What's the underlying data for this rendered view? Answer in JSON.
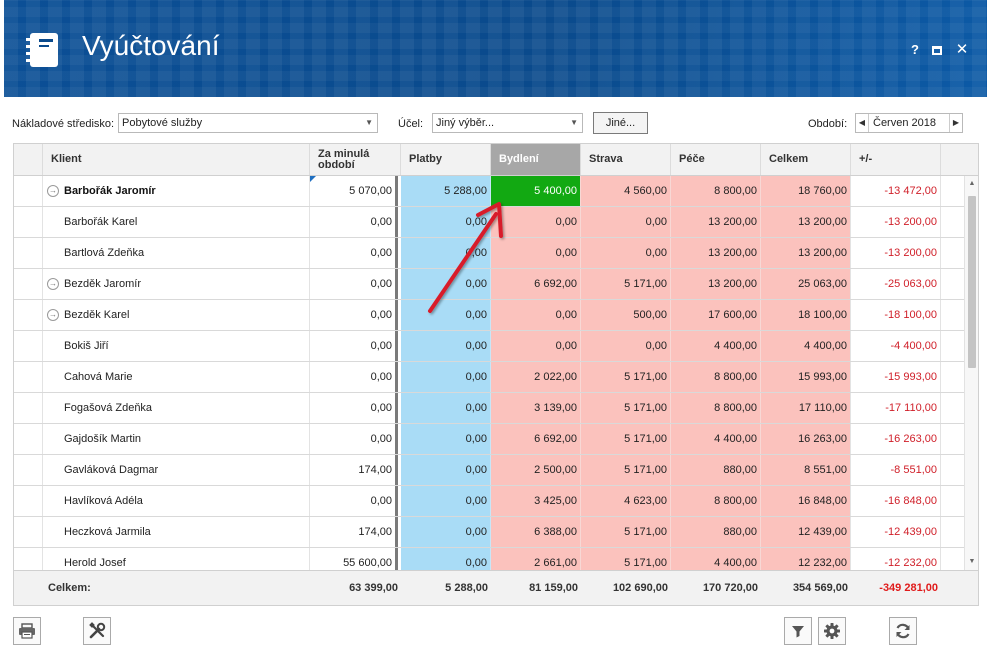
{
  "window": {
    "title": "Vyúčtování",
    "help_label": "?",
    "close_label": "✕",
    "icons": {
      "app": "notebook-icon",
      "maximize": "maximize-icon",
      "close": "close-icon"
    }
  },
  "filters": {
    "cost_center_label": "Nákladové středisko:",
    "cost_center_value": "Pobytové služby",
    "purpose_label": "Účel:",
    "purpose_value": "Jiný výběr...",
    "other_button": "Jiné...",
    "period_label": "Období:",
    "period_value": "Červen 2018"
  },
  "table": {
    "columns": [
      "Klient",
      "Za minulá\nobdobí",
      "Platby",
      "Bydlení",
      "Strava",
      "Péče",
      "Celkem",
      "+/-"
    ],
    "sorted_column": "Bydlení",
    "rows": [
      {
        "name": "Barbořák Jaromír",
        "prev": "5 070,00",
        "pay": "5 288,00",
        "byd": "5 400,00",
        "str": "4 560,00",
        "pec": "8 800,00",
        "cel": "18 760,00",
        "diff": "-13 472,00",
        "expandable": true,
        "bold": true,
        "active": true
      },
      {
        "name": "Barbořák Karel",
        "prev": "0,00",
        "pay": "0,00",
        "byd": "0,00",
        "str": "0,00",
        "pec": "13 200,00",
        "cel": "13 200,00",
        "diff": "-13 200,00",
        "expandable": false
      },
      {
        "name": "Bartlová Zdeňka",
        "prev": "0,00",
        "pay": "0,00",
        "byd": "0,00",
        "str": "0,00",
        "pec": "13 200,00",
        "cel": "13 200,00",
        "diff": "-13 200,00",
        "expandable": false
      },
      {
        "name": "Bezděk Jaromír",
        "prev": "0,00",
        "pay": "0,00",
        "byd": "6 692,00",
        "str": "5 171,00",
        "pec": "13 200,00",
        "cel": "25 063,00",
        "diff": "-25 063,00",
        "expandable": true
      },
      {
        "name": "Bezděk Karel",
        "prev": "0,00",
        "pay": "0,00",
        "byd": "0,00",
        "str": "500,00",
        "pec": "17 600,00",
        "cel": "18 100,00",
        "diff": "-18 100,00",
        "expandable": true
      },
      {
        "name": "Bokiš Jiří",
        "prev": "0,00",
        "pay": "0,00",
        "byd": "0,00",
        "str": "0,00",
        "pec": "4 400,00",
        "cel": "4 400,00",
        "diff": "-4 400,00",
        "expandable": false
      },
      {
        "name": "Cahová Marie",
        "prev": "0,00",
        "pay": "0,00",
        "byd": "2 022,00",
        "str": "5 171,00",
        "pec": "8 800,00",
        "cel": "15 993,00",
        "diff": "-15 993,00",
        "expandable": false
      },
      {
        "name": "Fogašová Zdeňka",
        "prev": "0,00",
        "pay": "0,00",
        "byd": "3 139,00",
        "str": "5 171,00",
        "pec": "8 800,00",
        "cel": "17 110,00",
        "diff": "-17 110,00",
        "expandable": false
      },
      {
        "name": "Gajdošík Martin",
        "prev": "0,00",
        "pay": "0,00",
        "byd": "6 692,00",
        "str": "5 171,00",
        "pec": "4 400,00",
        "cel": "16 263,00",
        "diff": "-16 263,00",
        "expandable": false
      },
      {
        "name": "Gavláková Dagmar",
        "prev": "174,00",
        "pay": "0,00",
        "byd": "2 500,00",
        "str": "5 171,00",
        "pec": "880,00",
        "cel": "8 551,00",
        "diff": "-8 551,00",
        "expandable": false
      },
      {
        "name": "Havlíková Adéla",
        "prev": "0,00",
        "pay": "0,00",
        "byd": "3 425,00",
        "str": "4 623,00",
        "pec": "8 800,00",
        "cel": "16 848,00",
        "diff": "-16 848,00",
        "expandable": false
      },
      {
        "name": "Heczková Jarmila",
        "prev": "174,00",
        "pay": "0,00",
        "byd": "6 388,00",
        "str": "5 171,00",
        "pec": "880,00",
        "cel": "12 439,00",
        "diff": "-12 439,00",
        "expandable": false
      },
      {
        "name": "Herold Josef",
        "prev": "55 600,00",
        "pay": "0,00",
        "byd": "2 661,00",
        "str": "5 171,00",
        "pec": "4 400,00",
        "cel": "12 232,00",
        "diff": "-12 232,00",
        "expandable": false
      }
    ],
    "footer": {
      "label": "Celkem:",
      "prev": "63 399,00",
      "pay": "5 288,00",
      "byd": "81 159,00",
      "str": "102 690,00",
      "pec": "170 720,00",
      "cel": "354 569,00",
      "diff": "-349 281,00"
    }
  },
  "toolbar": {
    "icons": [
      "print-icon",
      "tools-icon",
      "filter-icon",
      "settings-icon",
      "refresh-icon"
    ]
  },
  "colors": {
    "title_bar": "#0a4a8c",
    "payments": "#a9dcf6",
    "charges": "#fbc2bd",
    "highlight": "#12a912",
    "negative": "#d0202a",
    "annotation_arrow": "#d81e2a"
  }
}
